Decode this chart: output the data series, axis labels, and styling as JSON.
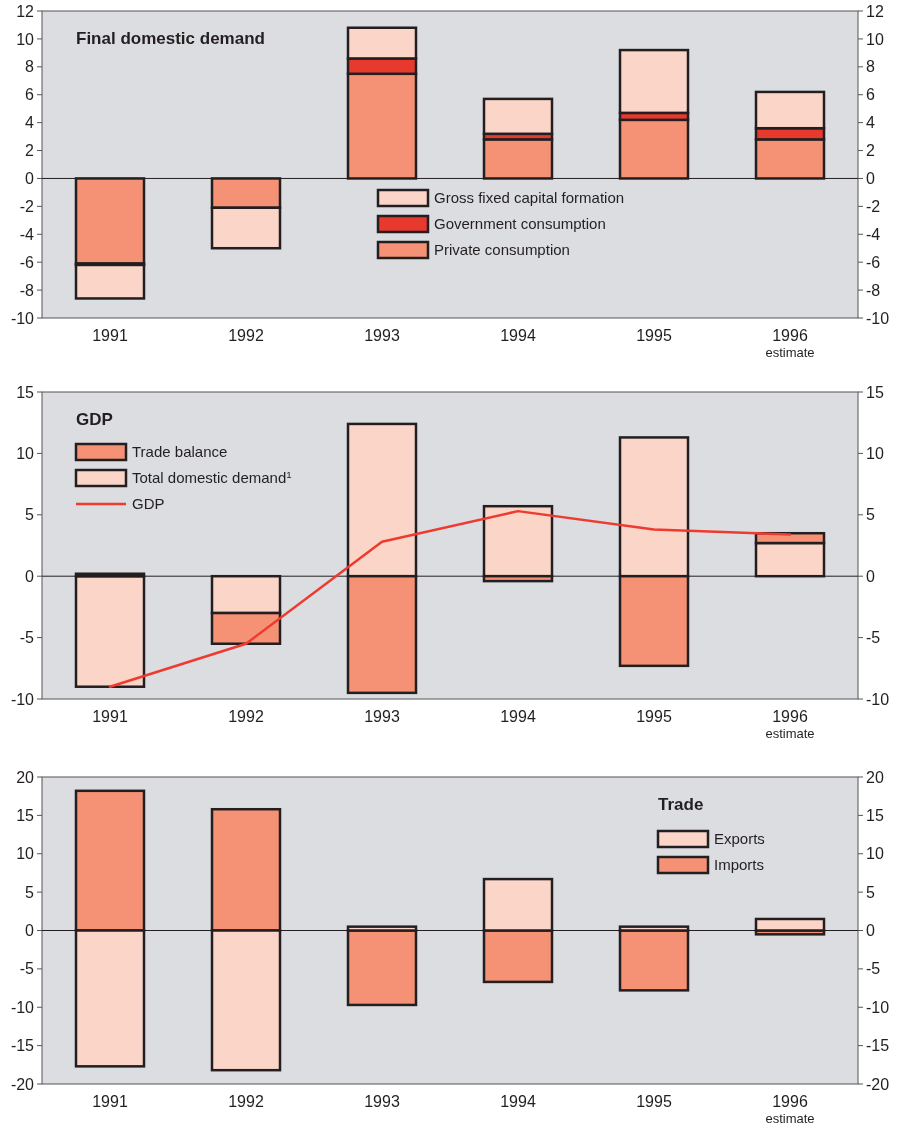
{
  "chart_data": [
    {
      "type": "bar",
      "title": "Final domestic demand",
      "stacked": true,
      "legend": "bottom right",
      "categories": [
        "1991",
        "1992",
        "1993",
        "1994",
        "1995",
        "1996\nestimate"
      ],
      "series": [
        {
          "name": "Private consumption",
          "color": "#f59275",
          "values": [
            -6.1,
            -2.1,
            7.5,
            2.8,
            4.2,
            2.8
          ]
        },
        {
          "name": "Government consumption",
          "color": "#e8392f",
          "values": [
            -0.1,
            null,
            1.1,
            0.4,
            0.5,
            0.8
          ]
        },
        {
          "name": "Gross fixed capital formation",
          "color": "#fad5c8",
          "values": [
            -2.4,
            -2.9,
            2.2,
            2.5,
            4.5,
            2.6
          ]
        }
      ],
      "ylim": [
        -10,
        12
      ],
      "yticks": [
        -10,
        -8,
        -6,
        -4,
        -2,
        0,
        2,
        4,
        6,
        8,
        10,
        12
      ],
      "y2lim": [
        -10,
        12
      ],
      "y2ticks": [
        -10,
        -8,
        -6,
        -4,
        -2,
        0,
        2,
        4,
        6,
        8,
        10,
        12
      ]
    },
    {
      "type": "bar",
      "title": "GDP",
      "stacked": true,
      "legend": "top left",
      "categories": [
        "1991",
        "1992",
        "1993",
        "1994",
        "1995",
        "1996\nestimate"
      ],
      "series": [
        {
          "name": "Total domestic demand$^{1}$",
          "color": "#fad5c8",
          "values": [
            -9.0,
            -3.0,
            12.4,
            5.7,
            11.3,
            2.7
          ]
        },
        {
          "name": "Trade balance",
          "color": "#f59275",
          "values": [
            0.2,
            -2.5,
            -9.5,
            -0.4,
            -7.3,
            0.8
          ]
        },
        {
          "name": "GDP",
          "type": "line",
          "color": "#ee3a2f",
          "values": [
            -9.0,
            -5.5,
            2.8,
            5.3,
            3.8,
            3.4
          ]
        }
      ],
      "ylim": [
        -10,
        15
      ],
      "yticks": [
        -10,
        -5,
        0,
        5,
        10,
        15
      ],
      "y2lim": [
        -10,
        15
      ],
      "y2ticks": [
        -10,
        -5,
        0,
        5,
        10,
        15
      ]
    },
    {
      "type": "bar",
      "title": "Trade",
      "stacked": true,
      "legend": "top right",
      "categories": [
        "1991",
        "1992",
        "1993",
        "1994",
        "1995",
        "1996\nestimate"
      ],
      "series": [
        {
          "name": "Imports",
          "color": "#f59275",
          "values": [
            18.2,
            15.8,
            -9.7,
            -6.7,
            -7.8,
            -0.5
          ]
        },
        {
          "name": "Exports",
          "color": "#fad5c8",
          "values": [
            -17.7,
            -18.2,
            0.5,
            6.7,
            0.5,
            1.5
          ]
        }
      ],
      "ylim": [
        -20,
        20
      ],
      "yticks": [
        -20,
        -15,
        -10,
        -5,
        0,
        5,
        10,
        15,
        20
      ],
      "y2lim": [
        -20,
        20
      ],
      "y2ticks": [
        -20,
        -15,
        -10,
        -5,
        0,
        5,
        10,
        15,
        20
      ]
    }
  ]
}
